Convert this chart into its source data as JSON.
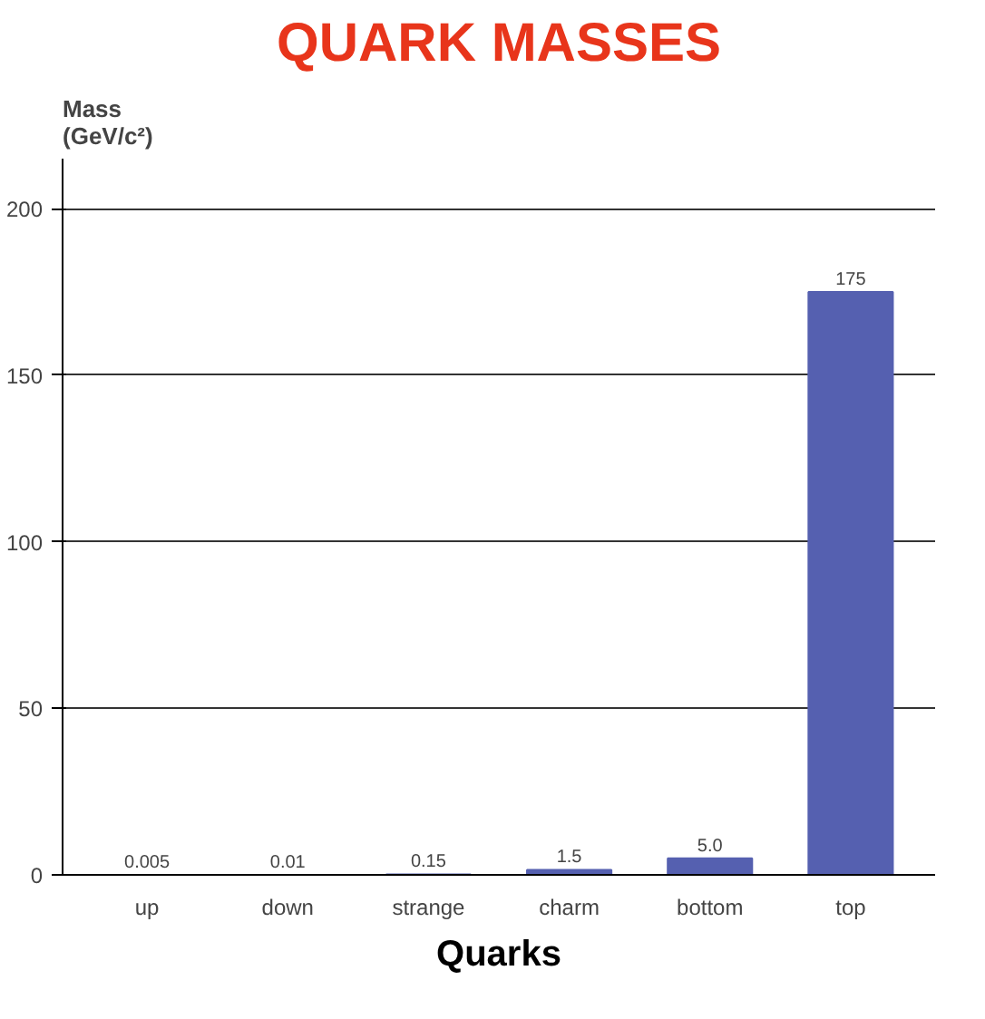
{
  "chart_data": {
    "type": "bar",
    "title": "QUARK MASSES",
    "xlabel": "Quarks",
    "ylabel": "Mass (GeV/c²)",
    "categories": [
      "up",
      "down",
      "strange",
      "charm",
      "bottom",
      "top"
    ],
    "values": [
      0.005,
      0.01,
      0.15,
      1.5,
      5.0,
      175
    ],
    "value_labels": [
      "0.005",
      "0.01",
      "0.15",
      "1.5",
      "5.0",
      "175"
    ],
    "color": "#5560b0",
    "ylim": [
      0,
      215
    ],
    "yticks": [
      0,
      50,
      100,
      150,
      200
    ],
    "grid": "y"
  }
}
